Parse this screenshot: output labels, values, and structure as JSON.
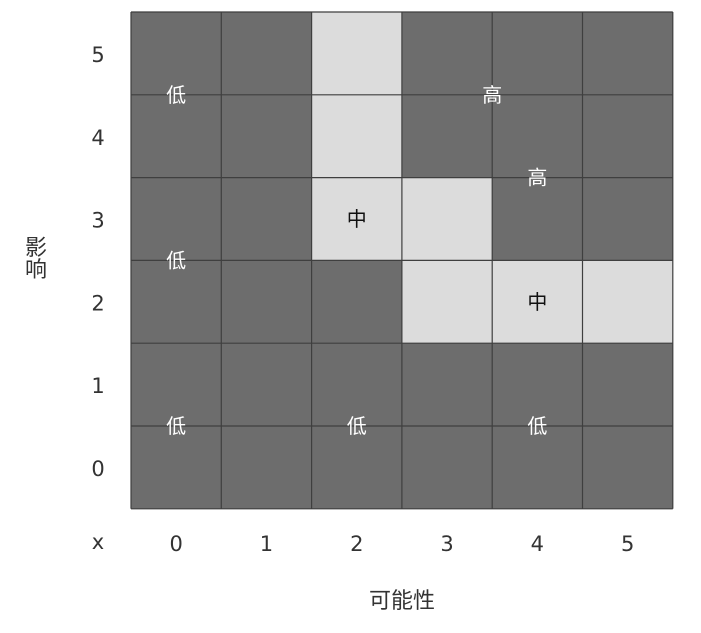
{
  "chart_data": {
    "type": "heatmap",
    "x_axis": {
      "title": "可能性",
      "corner_label": "x",
      "ticks": [
        "0",
        "1",
        "2",
        "3",
        "4",
        "5"
      ]
    },
    "y_axis": {
      "title": "影响",
      "ticks": [
        "0",
        "1",
        "2",
        "3",
        "4",
        "5"
      ]
    },
    "rows_top_to_bottom": [
      [
        "dark",
        "dark",
        "light",
        "dark",
        "dark",
        "dark"
      ],
      [
        "dark",
        "dark",
        "light",
        "dark",
        "dark",
        "dark"
      ],
      [
        "dark",
        "dark",
        "light",
        "light",
        "dark",
        "dark"
      ],
      [
        "dark",
        "dark",
        "dark",
        "light",
        "light",
        "light"
      ],
      [
        "dark",
        "dark",
        "dark",
        "dark",
        "dark",
        "dark"
      ],
      [
        "dark",
        "dark",
        "dark",
        "dark",
        "dark",
        "dark"
      ]
    ],
    "zone_labels": [
      {
        "text": "低",
        "x": 0.5,
        "y": 5.0,
        "color": "#ffffff"
      },
      {
        "text": "低",
        "x": 0.5,
        "y": 3.0,
        "color": "#ffffff"
      },
      {
        "text": "低",
        "x": 0.5,
        "y": 1.0,
        "color": "#ffffff"
      },
      {
        "text": "低",
        "x": 2.5,
        "y": 1.0,
        "color": "#ffffff"
      },
      {
        "text": "低",
        "x": 4.5,
        "y": 1.0,
        "color": "#ffffff"
      },
      {
        "text": "高",
        "x": 4.0,
        "y": 5.0,
        "color": "#ffffff"
      },
      {
        "text": "高",
        "x": 4.5,
        "y": 4.0,
        "color": "#ffffff"
      },
      {
        "text": "中",
        "x": 2.5,
        "y": 3.5,
        "color": "#111111"
      },
      {
        "text": "中",
        "x": 4.5,
        "y": 2.5,
        "color": "#111111"
      }
    ],
    "colors": {
      "dark": "#6d6d6d",
      "light": "#dcdcdc",
      "grid": "#3f3f3f"
    }
  }
}
